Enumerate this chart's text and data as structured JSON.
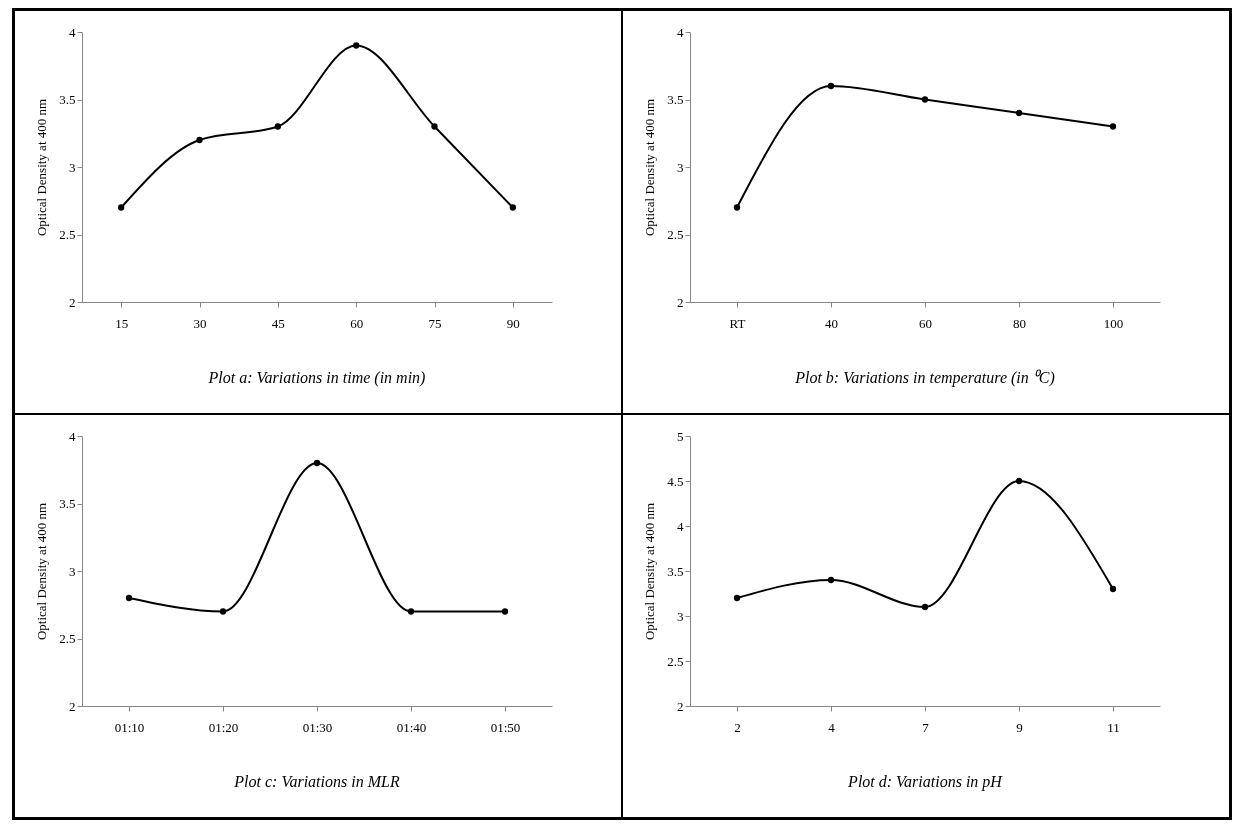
{
  "chart_data": [
    {
      "type": "line",
      "title": "Plot a: Variations in time (in min)",
      "ylabel": "Optical Density at 400 nm",
      "categories": [
        "15",
        "30",
        "45",
        "60",
        "75",
        "90"
      ],
      "series": [
        {
          "color": "#000000",
          "values": [
            2.7,
            3.2,
            3.3,
            3.9,
            3.3,
            2.7
          ]
        }
      ],
      "ylim": [
        2,
        4
      ],
      "yticks": [
        2,
        2.5,
        3,
        3.5,
        4
      ],
      "marker": "circle"
    },
    {
      "type": "line",
      "title": "Plot b: Variations in temperature (in ⁰C)",
      "ylabel": "Optical Density at 400 nm",
      "categories": [
        "RT",
        "40",
        "60",
        "80",
        "100"
      ],
      "series": [
        {
          "color": "#000000",
          "values": [
            2.7,
            3.6,
            3.5,
            3.4,
            3.3
          ]
        }
      ],
      "ylim": [
        2,
        4
      ],
      "yticks": [
        2,
        2.5,
        3,
        3.5,
        4
      ],
      "marker": "circle"
    },
    {
      "type": "line",
      "title": "Plot c: Variations in MLR",
      "ylabel": "Optical Density at 400 nm",
      "categories": [
        "01:10",
        "01:20",
        "01:30",
        "01:40",
        "01:50"
      ],
      "series": [
        {
          "color": "#000000",
          "values": [
            2.8,
            2.7,
            3.8,
            2.7,
            2.7
          ]
        }
      ],
      "ylim": [
        2,
        4
      ],
      "yticks": [
        2,
        2.5,
        3,
        3.5,
        4
      ],
      "marker": "circle"
    },
    {
      "type": "line",
      "title": "Plot d: Variations in pH",
      "ylabel": "Optical Density at 400 nm",
      "categories": [
        "2",
        "4",
        "7",
        "9",
        "11"
      ],
      "series": [
        {
          "color": "#000000",
          "values": [
            3.2,
            3.4,
            3.1,
            4.5,
            3.3
          ]
        }
      ],
      "ylim": [
        2,
        5
      ],
      "yticks": [
        2,
        2.5,
        3,
        3.5,
        4,
        4.5,
        5
      ],
      "marker": "circle"
    }
  ]
}
